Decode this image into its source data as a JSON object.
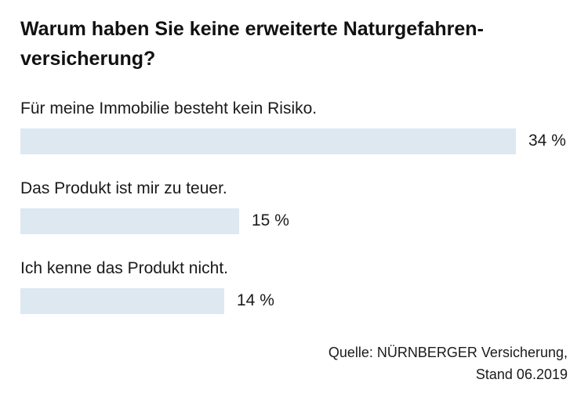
{
  "title": "Warum haben Sie keine erweiterte Naturgefahren-versicherung?",
  "colors": {
    "bar": "#dde8f0",
    "text": "#1a1a1a"
  },
  "chart_data": {
    "type": "bar",
    "orientation": "horizontal",
    "title": "Warum haben Sie keine erweiterte Naturgefahren-versicherung?",
    "categories": [
      "Für meine Immobilie besteht kein Risiko.",
      "Das Produkt ist mir zu teuer.",
      "Ich kenne das Produkt nicht."
    ],
    "values": [
      34,
      15,
      14
    ],
    "value_labels": [
      "34 %",
      "15 %",
      "14 %"
    ],
    "unit": "%",
    "xlim": [
      0,
      34
    ],
    "grid": false,
    "legend": "none"
  },
  "source": {
    "line1": "Quelle: NÜRNBERGER Versicherung,",
    "line2": "Stand 06.2019"
  }
}
